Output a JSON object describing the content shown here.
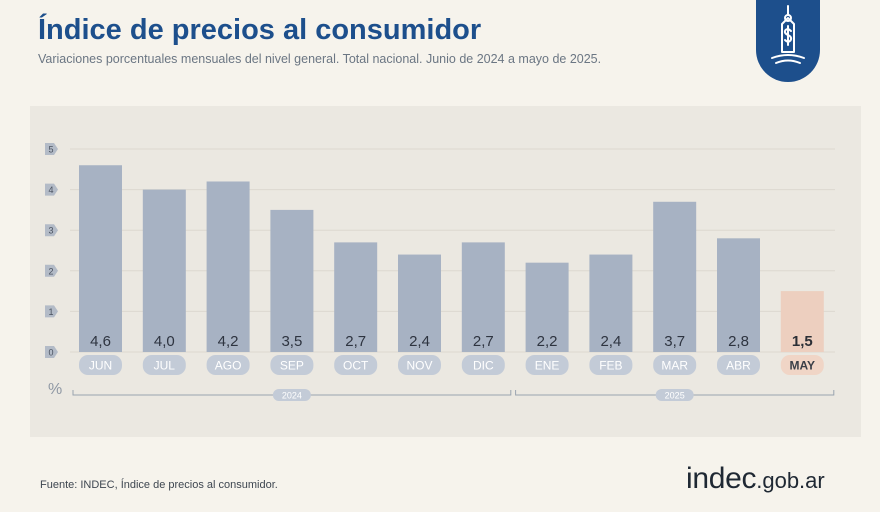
{
  "header": {
    "title": "Índice de precios al consumidor",
    "subtitle": "Variaciones porcentuales mensuales del nivel general. Total nacional. Junio de 2024 a mayo de 2025."
  },
  "footer": {
    "source": "Fuente: INDEC, Índice de precios al consumidor.",
    "brand_main": "indec",
    "brand_domain": ".gob.ar"
  },
  "logo": {
    "icon": "price-tag-dollar-icon"
  },
  "colors": {
    "title": "#1d4f8c",
    "bar": "#a7b2c3",
    "bar_highlight": "#edcfbf",
    "label_pill": "#c3cbd7",
    "label_pill_highlight": "#f0d5c6",
    "background": "#f6f3ec",
    "panel": "#ebe8e1"
  },
  "chart_data": {
    "type": "bar",
    "categories": [
      "JUN",
      "JUL",
      "AGO",
      "SEP",
      "OCT",
      "NOV",
      "DIC",
      "ENE",
      "FEB",
      "MAR",
      "ABR",
      "MAY"
    ],
    "values": [
      4.6,
      4.0,
      4.2,
      3.5,
      2.7,
      2.4,
      2.7,
      2.2,
      2.4,
      3.7,
      2.8,
      1.5
    ],
    "value_labels": [
      "4,6",
      "4,0",
      "4,2",
      "3,5",
      "2,7",
      "2,4",
      "2,7",
      "2,2",
      "2,4",
      "3,7",
      "2,8",
      "1,5"
    ],
    "highlight": "MAY",
    "ylim": [
      0,
      5
    ],
    "yticks": [
      "0",
      "1",
      "2",
      "3",
      "4",
      "5"
    ],
    "ylabel": "%",
    "year_groups": [
      {
        "label": "2024",
        "categories": [
          "JUN",
          "JUL",
          "AGO",
          "SEP",
          "OCT",
          "NOV",
          "DIC"
        ]
      },
      {
        "label": "2025",
        "categories": [
          "ENE",
          "FEB",
          "MAR",
          "ABR",
          "MAY"
        ]
      }
    ],
    "grid": true
  }
}
